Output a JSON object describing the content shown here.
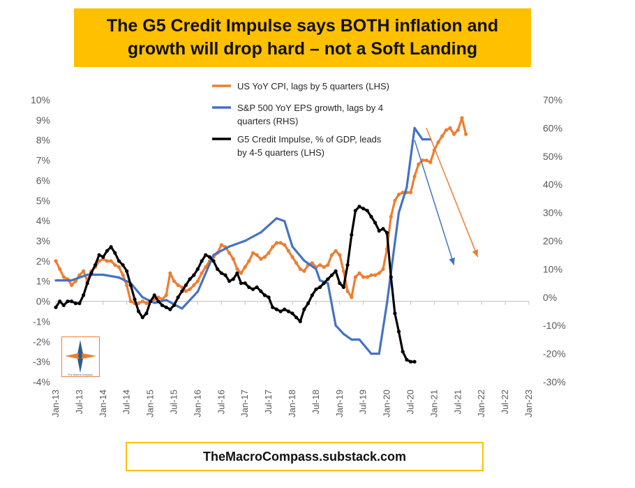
{
  "chart_data": {
    "type": "line",
    "title": "The G5 Credit Impulse says BOTH inflation and growth will drop hard – not a Soft Landing",
    "footer": "TheMacroCompass.substack.com",
    "logo_text": "The MacroCompass",
    "x_ticks": [
      "Jan-13",
      "Jul-13",
      "Jan-14",
      "Jul-14",
      "Jan-15",
      "Jul-15",
      "Jan-16",
      "Jul-16",
      "Jan-17",
      "Jul-17",
      "Jan-18",
      "Jul-18",
      "Jan-19",
      "Jul-19",
      "Jan-20",
      "Jul-20",
      "Jan-21",
      "Jul-21",
      "Jan-22",
      "Jul-22",
      "Jan-23"
    ],
    "y_left": {
      "ticks": [
        "10%",
        "9%",
        "8%",
        "7%",
        "6%",
        "5%",
        "4%",
        "3%",
        "2%",
        "1%",
        "0%",
        "-1%",
        "-2%",
        "-3%",
        "-4%"
      ],
      "range": [
        -4,
        10
      ]
    },
    "y_right": {
      "ticks": [
        "70%",
        "60%",
        "50%",
        "40%",
        "30%",
        "20%",
        "10%",
        "0%",
        "-10%",
        "-20%",
        "-30%"
      ],
      "range": [
        -30,
        70
      ]
    },
    "legend": [
      {
        "label": "US YoY CPI, lags by 5 quarters (LHS)",
        "color": "#ED7D31"
      },
      {
        "label": "S&P 500 YoY EPS growth, lags by 4 quarters (RHS)",
        "color": "#4472C4"
      },
      {
        "label": "G5 Credit Impulse, % of GDP, leads by 4-5 quarters (LHS)",
        "color": "#000000"
      }
    ],
    "series": [
      {
        "name": "US YoY CPI, lags by 5 quarters (LHS)",
        "axis": "left",
        "color": "#ED7D31",
        "x": [
          0,
          1,
          2,
          3,
          4,
          5,
          6,
          7,
          8,
          9,
          10,
          11,
          12,
          13,
          14,
          15,
          16,
          17,
          18,
          19,
          20,
          21,
          22,
          23,
          24,
          25,
          26,
          27,
          28,
          29,
          30,
          31,
          32,
          33,
          34,
          35,
          36,
          37,
          38,
          39,
          40,
          41,
          42,
          43,
          44,
          45,
          46,
          47,
          48,
          49,
          50,
          51,
          52,
          53,
          54,
          55,
          56,
          57,
          58,
          59,
          60,
          61,
          62,
          63,
          64,
          65,
          66,
          67,
          68,
          69,
          70,
          71,
          72,
          73,
          74,
          75,
          76,
          77,
          78,
          79,
          80,
          81,
          82,
          83,
          84,
          85,
          86,
          87,
          88,
          89,
          90,
          91,
          92,
          93,
          94,
          95,
          96,
          97,
          98,
          99,
          100,
          101,
          102,
          103,
          104,
          105,
          106,
          107
        ],
        "y": [
          2.0,
          1.6,
          1.2,
          1.1,
          0.8,
          1.0,
          1.3,
          1.5,
          1.0,
          1.5,
          1.7,
          2.0,
          2.1,
          2.0,
          2.0,
          1.8,
          1.7,
          1.3,
          0.8,
          0.0,
          -0.1,
          -0.1,
          0.0,
          -0.1,
          0.0,
          0.1,
          0.2,
          0.1,
          0.3,
          1.4,
          1.0,
          0.8,
          0.7,
          0.5,
          0.6,
          0.8,
          1.0,
          1.4,
          1.7,
          2.0,
          2.2,
          2.4,
          2.8,
          2.7,
          2.4,
          2.1,
          1.6,
          1.4,
          1.7,
          2.0,
          2.4,
          2.3,
          2.1,
          2.2,
          2.4,
          2.7,
          2.9,
          2.9,
          2.8,
          2.5,
          2.2,
          1.9,
          1.6,
          1.5,
          1.8,
          1.9,
          1.7,
          1.8,
          1.7,
          1.8,
          2.3,
          2.5,
          2.3,
          1.5,
          0.5,
          0.2,
          1.2,
          1.4,
          1.2,
          1.2,
          1.3,
          1.3,
          1.4,
          1.6,
          2.6,
          4.2,
          5.0,
          5.3,
          5.4,
          5.4,
          5.4,
          6.2,
          6.8,
          7.0,
          7.0,
          6.9,
          7.5,
          7.9,
          8.2,
          8.5,
          8.6,
          8.3,
          8.5,
          9.1,
          8.3,
          null,
          null,
          null
        ]
      },
      {
        "name": "S&P 500 YoY EPS growth, lags by 4 quarters (RHS)",
        "axis": "right",
        "color": "#4472C4",
        "x": [
          0,
          4,
          8,
          12,
          16,
          19,
          22,
          25,
          28,
          32,
          36,
          40,
          44,
          48,
          52,
          56,
          58,
          60,
          63,
          66,
          67,
          69,
          71,
          73,
          75,
          77,
          80,
          82,
          84,
          87,
          89,
          91,
          93,
          95
        ],
        "y": [
          6,
          6,
          8,
          8,
          7,
          5,
          0,
          -2,
          -1,
          -4,
          2,
          15,
          18,
          20,
          23,
          28,
          27,
          18,
          13,
          10,
          6,
          5,
          -10,
          -13,
          -15,
          -15,
          -20,
          -20,
          -2,
          30,
          39,
          60,
          56,
          56
        ]
      },
      {
        "name": "G5 Credit Impulse, % of GDP, leads by 4-5 quarters (LHS)",
        "axis": "left",
        "color": "#000000",
        "x": [
          0,
          1,
          2,
          3,
          4,
          5,
          6,
          7,
          8,
          9,
          10,
          11,
          12,
          13,
          14,
          15,
          16,
          17,
          18,
          19,
          20,
          21,
          22,
          23,
          24,
          25,
          26,
          27,
          28,
          29,
          30,
          31,
          32,
          33,
          34,
          35,
          36,
          37,
          38,
          39,
          40,
          41,
          42,
          43,
          44,
          45,
          46,
          47,
          48,
          49,
          50,
          51,
          52,
          53,
          54,
          55,
          56,
          57,
          58,
          59,
          60,
          61,
          62,
          63,
          64,
          65,
          66,
          67,
          68,
          69,
          70,
          71,
          72,
          73,
          74,
          75,
          76,
          77,
          78,
          79,
          80,
          81,
          82,
          83,
          84,
          85,
          86,
          87,
          88,
          89,
          90,
          91,
          92,
          93,
          94,
          95,
          96,
          97,
          98,
          99,
          100,
          101,
          102,
          103,
          104,
          105,
          106,
          107
        ],
        "y": [
          -0.3,
          0.0,
          -0.2,
          0.0,
          0.0,
          -0.1,
          -0.1,
          0.3,
          0.9,
          1.4,
          1.8,
          2.3,
          2.2,
          2.5,
          2.7,
          2.4,
          2.0,
          1.8,
          1.5,
          0.8,
          0.1,
          -0.5,
          -0.8,
          -0.6,
          0.0,
          0.3,
          0.0,
          -0.2,
          -0.3,
          -0.4,
          -0.2,
          0.2,
          0.5,
          0.8,
          1.1,
          1.3,
          1.6,
          2.0,
          2.3,
          2.2,
          2.0,
          1.6,
          1.4,
          1.3,
          1.0,
          1.1,
          1.4,
          0.9,
          0.9,
          0.7,
          0.6,
          0.7,
          0.5,
          0.3,
          0.2,
          -0.3,
          -0.4,
          -0.5,
          -0.4,
          -0.5,
          -0.6,
          -0.8,
          -1.0,
          -0.4,
          -0.1,
          0.3,
          0.6,
          0.7,
          0.9,
          1.1,
          1.3,
          1.5,
          0.9,
          0.7,
          1.8,
          3.3,
          4.5,
          4.7,
          4.6,
          4.5,
          4.2,
          3.9,
          3.5,
          3.6,
          3.4,
          1.2,
          -0.6,
          -1.5,
          -2.5,
          -2.9,
          -3.0,
          -3.0,
          null,
          null,
          null,
          null,
          null,
          null,
          null,
          null,
          null,
          null,
          null,
          null,
          null,
          null,
          null,
          null
        ]
      }
    ],
    "annotations": [
      {
        "type": "arrow",
        "color": "#ED7D31",
        "from": [
          94,
          8.6
        ],
        "to": [
          107,
          2.2
        ],
        "axis": "left"
      },
      {
        "type": "arrow",
        "color": "#4472C4",
        "from": [
          91,
          8.0
        ],
        "to": [
          101,
          1.8
        ],
        "axis": "left"
      }
    ]
  }
}
